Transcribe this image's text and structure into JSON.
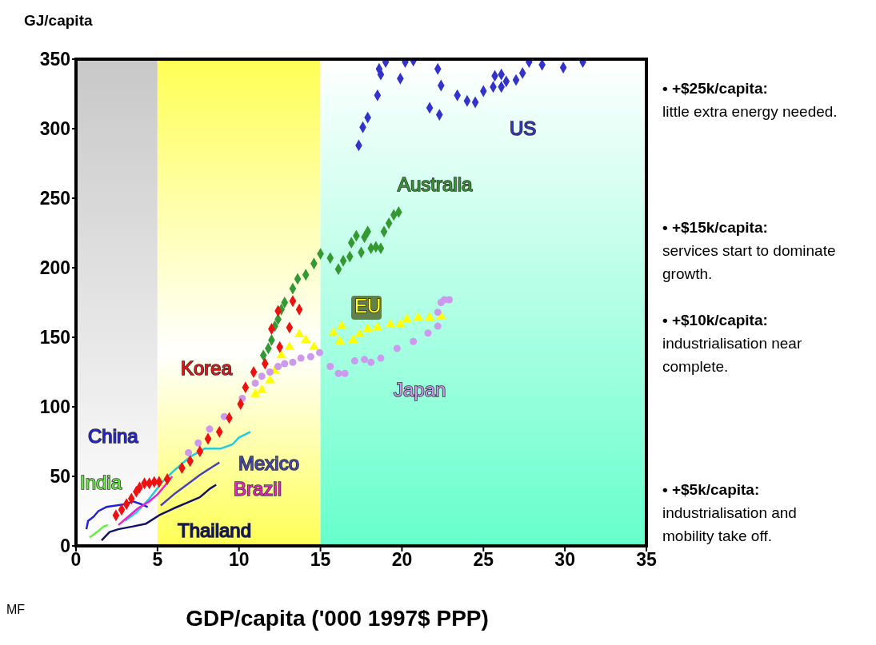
{
  "chart_data": {
    "type": "scatter",
    "xlabel": "GDP/capita ('000 1997$ PPP)",
    "ylabel": "GJ/capita",
    "xlim": [
      0,
      35
    ],
    "xticks": [
      0,
      5,
      10,
      15,
      20,
      25,
      30,
      35
    ],
    "ylim": [
      0,
      350
    ],
    "yticks": [
      0,
      50,
      100,
      150,
      200,
      250,
      300,
      350
    ],
    "grid": false,
    "bands": [
      {
        "axis": "x",
        "from": 0,
        "to": 5,
        "color": "#c8c8c8"
      },
      {
        "axis": "x",
        "from": 5,
        "to": 15,
        "color": "#ffff55"
      },
      {
        "axis": "x",
        "from": 15,
        "to": 35,
        "color": "#66ffcc"
      }
    ],
    "annotations": [
      "• +$25k/capita:",
      "little extra energy needed.",
      "• +$15k/capita:",
      "services start to dominate growth.",
      "• +$10k/capita:",
      "industrialisation near complete.",
      "• +$5k/capita:",
      "industrialisation and mobility take off.",
      "MF"
    ],
    "series": [
      {
        "name": "US",
        "marker": "diamond",
        "color": "#3333cc",
        "x": [
          17.35,
          17.6,
          17.9,
          18.5,
          18.6,
          18.7,
          19.0,
          19.9,
          20.2,
          20.7,
          21.7,
          22.2,
          22.3,
          22.4,
          23.4,
          24.0,
          24.5,
          25.0,
          25.6,
          25.7,
          26.1,
          26.1,
          26.4,
          27.0,
          27.4,
          27.8,
          28.6,
          29.9,
          31.1
        ],
        "values": [
          288,
          301,
          308,
          324,
          343,
          339,
          348,
          336,
          348,
          349,
          315,
          343,
          310,
          331,
          324,
          320,
          319,
          327,
          330,
          338,
          339,
          330,
          334,
          335,
          340,
          348,
          346,
          344,
          348
        ]
      },
      {
        "name": "Australia",
        "marker": "diamond",
        "color": "#339933",
        "x": [
          11.5,
          11.8,
          12.0,
          12.2,
          12.4,
          12.6,
          12.8,
          13.3,
          13.6,
          14.1,
          14.6,
          15.0,
          15.6,
          16.1,
          16.4,
          16.8,
          16.9,
          17.2,
          17.5,
          17.7,
          17.9,
          18.1,
          18.4,
          18.7,
          18.9,
          19.2,
          19.5,
          19.8
        ],
        "values": [
          137,
          142,
          148,
          158,
          163,
          170,
          175,
          185,
          192,
          195,
          203,
          210,
          207,
          199,
          205,
          208,
          218,
          223,
          211,
          222,
          226,
          214,
          215,
          214,
          226,
          232,
          238,
          240
        ]
      },
      {
        "name": "EU",
        "marker": "triangle",
        "color": "#ffff00",
        "x": [
          11.0,
          11.4,
          11.9,
          12.2,
          12.6,
          13.1,
          13.7,
          14.1,
          14.6,
          15.8,
          16.2,
          16.3,
          17.0,
          17.4,
          17.9,
          18.5,
          19.3,
          19.9,
          20.3,
          21.0,
          21.7,
          22.4
        ],
        "values": [
          109,
          112,
          119,
          126,
          137,
          143,
          152,
          148,
          143,
          153,
          147,
          158,
          148,
          152,
          156,
          157,
          159,
          159,
          163,
          164,
          164,
          165
        ]
      },
      {
        "name": "Japan",
        "marker": "circle",
        "color": "#cc99ee",
        "x": [
          6.9,
          7.5,
          8.2,
          9.1,
          10.2,
          11.0,
          11.4,
          11.9,
          12.4,
          12.8,
          13.3,
          13.8,
          14.4,
          14.95,
          15.6,
          16.1,
          16.5,
          17.1,
          17.7,
          18.1,
          18.7,
          19.7,
          20.7,
          21.6,
          22.2,
          22.2,
          22.4,
          22.6,
          22.9
        ],
        "values": [
          67,
          74,
          84,
          93,
          106,
          117,
          122,
          125,
          129,
          131,
          132,
          135,
          136,
          139,
          129,
          124,
          124,
          133,
          134,
          132,
          135,
          142,
          147,
          153,
          158,
          168,
          175,
          177,
          177
        ]
      },
      {
        "name": "Korea",
        "marker": "diamond",
        "color": "#ee1111",
        "x": [
          2.45,
          2.8,
          3.1,
          3.4,
          3.7,
          3.9,
          4.2,
          4.5,
          4.8,
          5.1,
          5.6,
          6.5,
          7.0,
          7.6,
          8.1,
          8.8,
          9.4,
          10.1,
          10.4,
          10.9,
          11.6,
          12.0,
          12.4,
          12.5,
          13.1,
          13.3,
          13.7
        ],
        "values": [
          22,
          26,
          30,
          34,
          39,
          42,
          45,
          45,
          46,
          46,
          48,
          56,
          61,
          68,
          77,
          82,
          92,
          102,
          114,
          125,
          131,
          156,
          169,
          143,
          157,
          176,
          170
        ]
      },
      {
        "name": "China",
        "type": "line",
        "marker": "none",
        "color": "#2222dd",
        "x": [
          0.64,
          0.74,
          1.08,
          1.37,
          1.86,
          2.45,
          3.04,
          3.5,
          4.0,
          4.4
        ],
        "values": [
          12,
          18,
          21,
          25,
          28,
          29,
          30,
          32,
          30,
          28
        ]
      },
      {
        "name": "India",
        "type": "line",
        "marker": "none",
        "color": "#66ee44",
        "x": [
          0.83,
          1.3,
          1.7,
          1.96
        ],
        "values": [
          6,
          10,
          14,
          15
        ]
      },
      {
        "type": "line",
        "marker": "none",
        "color": "#22ccdd",
        "x": [
          3.0,
          3.7,
          4.5,
          5.3,
          6.0,
          7.0,
          7.9,
          8.9,
          9.6,
          10.0,
          10.7
        ],
        "values": [
          18,
          24,
          34,
          46,
          54,
          64,
          70,
          70,
          73,
          78,
          82
        ]
      },
      {
        "name": "Mexico",
        "type": "line",
        "marker": "none",
        "color": "#4444bb",
        "x": [
          5.2,
          6.0,
          6.8,
          7.6,
          8.4,
          8.8
        ],
        "values": [
          29,
          37,
          44,
          51,
          57,
          60
        ]
      },
      {
        "name": "Brazil",
        "type": "line",
        "marker": "none",
        "color": "#ee22cc",
        "x": [
          2.6,
          3.2,
          3.8,
          4.5,
          5.0,
          5.5,
          5.9
        ],
        "values": [
          15,
          21,
          27,
          32,
          37,
          44,
          50
        ]
      },
      {
        "name": "Thailand",
        "type": "line",
        "marker": "none",
        "color": "#111166",
        "x": [
          1.57,
          2.06,
          2.6,
          3.5,
          4.3,
          5.1,
          6.0,
          6.8,
          7.6,
          8.2,
          8.6
        ],
        "values": [
          4,
          10,
          12,
          14,
          16,
          22,
          27,
          31,
          35,
          41,
          44
        ]
      }
    ]
  }
}
